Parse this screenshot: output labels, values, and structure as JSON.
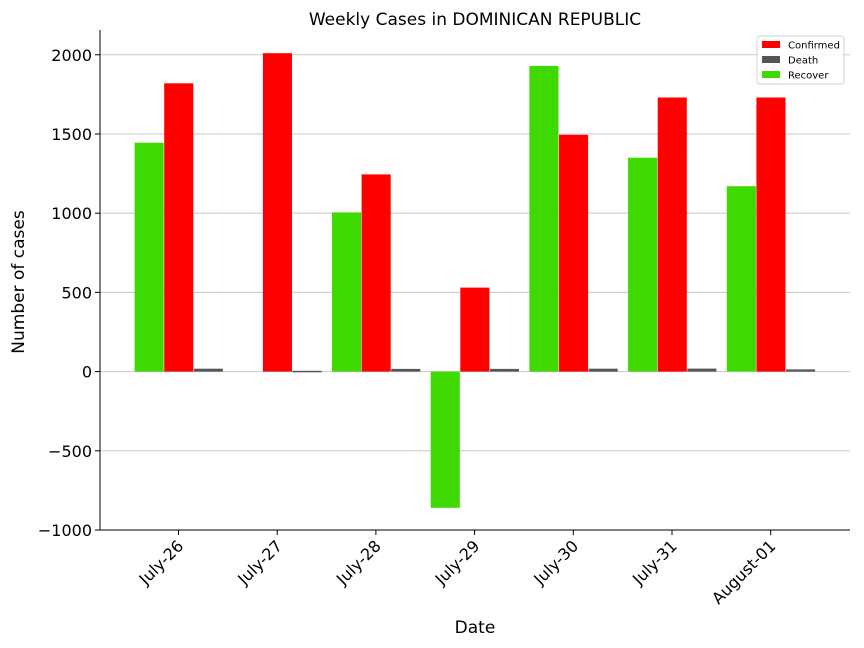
{
  "chart_data": {
    "type": "bar",
    "title": "Weekly Cases in DOMINICAN REPUBLIC",
    "xlabel": "Date",
    "ylabel": "Number of cases",
    "categories": [
      "July-26",
      "July-27",
      "July-28",
      "July-29",
      "July-30",
      "July-31",
      "August-01"
    ],
    "ylim": [
      -1000,
      2150
    ],
    "yticks": [
      -1000,
      -500,
      0,
      500,
      1000,
      1500,
      2000
    ],
    "ytick_labels": [
      "−1000",
      "−500",
      "0",
      "500",
      "1000",
      "1500",
      "2000"
    ],
    "grid": "horizontal",
    "legend_position": "top-right",
    "series": [
      {
        "name": "Recover",
        "color": "#3dd900",
        "values": [
          1445,
          null,
          1005,
          -860,
          1930,
          1350,
          1170
        ]
      },
      {
        "name": "Confirmed",
        "color": "#ff0000",
        "values": [
          1820,
          2010,
          1245,
          530,
          1495,
          1730,
          1730
        ]
      },
      {
        "name": "Death",
        "color": "#555555",
        "values": [
          18,
          5,
          17,
          17,
          18,
          19,
          14
        ]
      }
    ],
    "legend_order": [
      "Confirmed",
      "Death",
      "Recover"
    ]
  }
}
